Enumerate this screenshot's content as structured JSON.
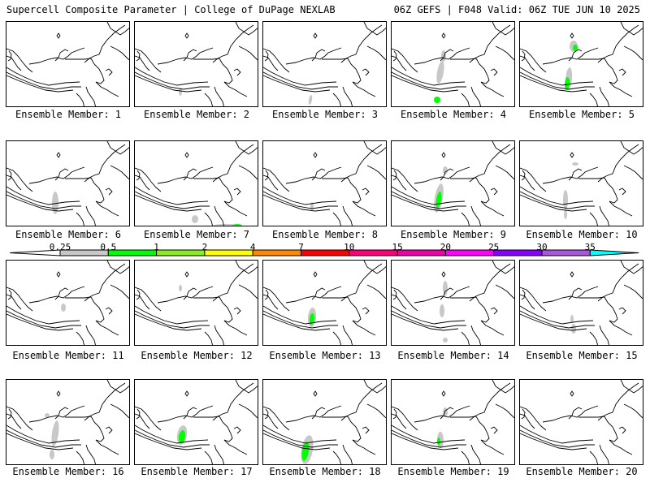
{
  "header": {
    "left": "Supercell Composite Parameter | College of DuPage NEXLAB",
    "right": "06Z GEFS | F048 Valid: 06Z TUE JUN 10 2025"
  },
  "members": [
    {
      "label": "Ensemble Member: 1"
    },
    {
      "label": "Ensemble Member: 2"
    },
    {
      "label": "Ensemble Member: 3"
    },
    {
      "label": "Ensemble Member: 4"
    },
    {
      "label": "Ensemble Member: 5"
    },
    {
      "label": "Ensemble Member: 6"
    },
    {
      "label": "Ensemble Member: 7"
    },
    {
      "label": "Ensemble Member: 8"
    },
    {
      "label": "Ensemble Member: 9"
    },
    {
      "label": "Ensemble Member: 10"
    },
    {
      "label": "Ensemble Member: 11"
    },
    {
      "label": "Ensemble Member: 12"
    },
    {
      "label": "Ensemble Member: 13"
    },
    {
      "label": "Ensemble Member: 14"
    },
    {
      "label": "Ensemble Member: 15"
    },
    {
      "label": "Ensemble Member: 16"
    },
    {
      "label": "Ensemble Member: 17"
    },
    {
      "label": "Ensemble Member: 18"
    },
    {
      "label": "Ensemble Member: 19"
    },
    {
      "label": "Ensemble Member: 20"
    }
  ],
  "colorbar": {
    "ticks": [
      "0.25",
      "0.5",
      "1",
      "2",
      "4",
      "7",
      "10",
      "15",
      "20",
      "25",
      "30",
      "35"
    ],
    "colors": [
      "#c8c8c8",
      "#00ff00",
      "#88ee22",
      "#ffff00",
      "#ff8800",
      "#ff0000",
      "#ff0077",
      "#ee00aa",
      "#ff00ff",
      "#8800ff",
      "#aa55dd",
      "#00ffff"
    ]
  }
}
